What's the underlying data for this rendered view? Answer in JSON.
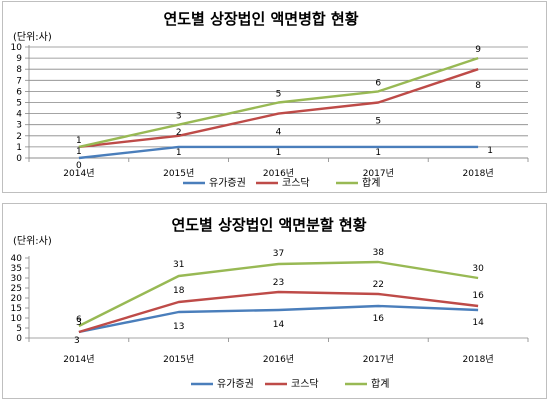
{
  "chart_data": [
    {
      "type": "line",
      "title": "연도별 상장법인 액면병합 현황",
      "unit_label": "(단위:사)",
      "categories": [
        "2014년",
        "2015년",
        "2016년",
        "2017년",
        "2018년"
      ],
      "ylim": [
        0,
        10
      ],
      "yticks": [
        "0",
        "1",
        "2",
        "3",
        "4",
        "5",
        "6",
        "7",
        "8",
        "9",
        "10"
      ],
      "grid": true,
      "legend_position": "bottom",
      "series": [
        {
          "name": "유가증권",
          "color": "#4a7ebb",
          "values": [
            0,
            1,
            1,
            1,
            1
          ]
        },
        {
          "name": "코스닥",
          "color": "#be4b48",
          "values": [
            1,
            2,
            4,
            5,
            8
          ]
        },
        {
          "name": "합계",
          "color": "#98b954",
          "values": [
            1,
            3,
            5,
            6,
            9
          ]
        }
      ]
    },
    {
      "type": "line",
      "title": "연도별 상장법인 액면분할 현황",
      "unit_label": "(단위:사)",
      "categories": [
        "2014년",
        "2015년",
        "2016년",
        "2017년",
        "2018년"
      ],
      "ylim": [
        0,
        40
      ],
      "yticks": [
        "0",
        "5",
        "10",
        "15",
        "20",
        "25",
        "30",
        "35",
        "40"
      ],
      "grid": false,
      "legend_position": "bottom",
      "series": [
        {
          "name": "유가증권",
          "color": "#4a7ebb",
          "values": [
            3,
            13,
            14,
            16,
            14
          ]
        },
        {
          "name": "코스닥",
          "color": "#be4b48",
          "values": [
            3,
            18,
            23,
            22,
            16
          ]
        },
        {
          "name": "합계",
          "color": "#98b954",
          "values": [
            6,
            31,
            37,
            38,
            30
          ]
        }
      ]
    }
  ]
}
